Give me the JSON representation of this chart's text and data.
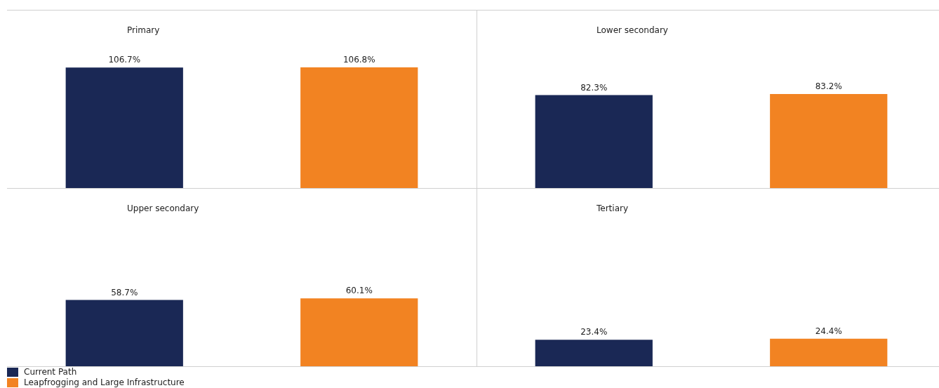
{
  "chart_data": [
    {
      "type": "bar",
      "title": "Primary",
      "categories": [
        null,
        null
      ],
      "stacked": true,
      "data_labels": true,
      "legend": "bottom left",
      "series": [
        {
          "name": "Current Path",
          "color": "#1a2855",
          "values": [
            106.7,
            null
          ],
          "value_labels": [
            "106.7%",
            null
          ]
        },
        {
          "name": "Leapfrogging and Large Infrastructure",
          "color": "#f28322",
          "values": [
            null,
            106.8
          ],
          "value_labels": [
            null,
            "106.8%"
          ]
        }
      ]
    },
    {
      "type": "bar",
      "title": "Lower secondary",
      "categories": [
        null,
        null
      ],
      "stacked": true,
      "data_labels": true,
      "series": [
        {
          "color": "#1a2855",
          "values": [
            82.3,
            null
          ],
          "value_labels": [
            "82.3%",
            null
          ]
        },
        {
          "color": "#f28322",
          "values": [
            null,
            83.2
          ],
          "value_labels": [
            null,
            "83.2%"
          ]
        }
      ]
    },
    {
      "type": "bar",
      "title": "Upper secondary",
      "categories": [
        null,
        null
      ],
      "stacked": true,
      "data_labels": true,
      "series": [
        {
          "color": "#1a2855",
          "values": [
            58.7,
            null
          ],
          "value_labels": [
            "58.7%",
            null
          ]
        },
        {
          "color": "#f28322",
          "values": [
            null,
            60.1
          ],
          "value_labels": [
            null,
            "60.1%"
          ]
        }
      ]
    },
    {
      "type": "bar",
      "title": "Tertiary",
      "categories": [
        null,
        null
      ],
      "stacked": true,
      "data_labels": true,
      "series": [
        {
          "color": "#1a2855",
          "values": [
            23.4,
            null
          ],
          "value_labels": [
            "23.4%",
            null
          ]
        },
        {
          "color": "#f28322",
          "values": [
            null,
            24.4
          ],
          "value_labels": [
            null,
            "24.4%"
          ]
        }
      ]
    }
  ]
}
